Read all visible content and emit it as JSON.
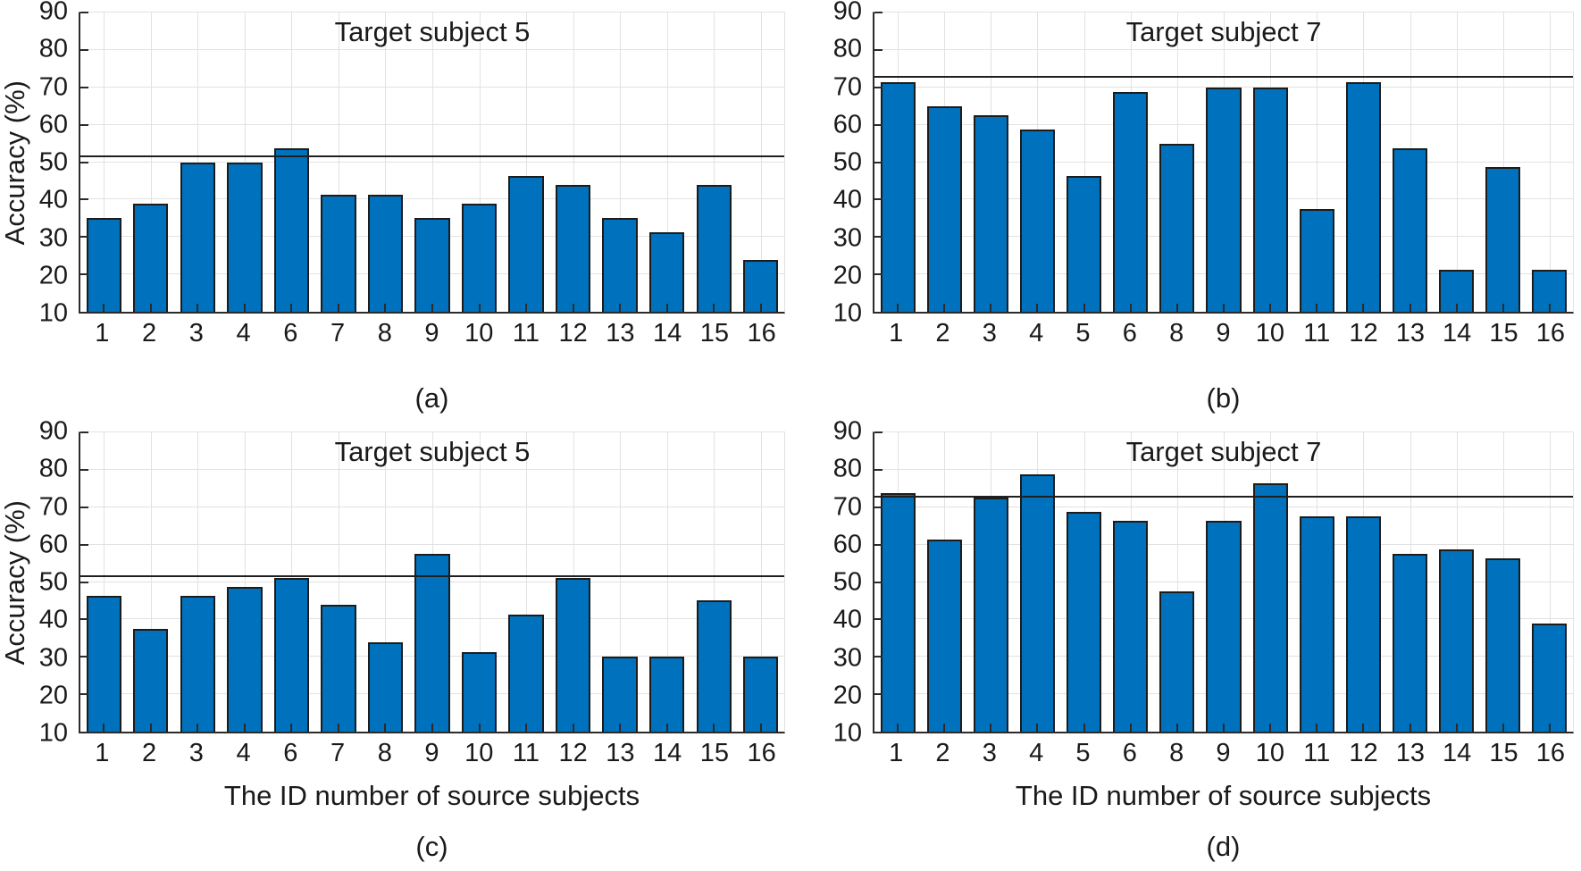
{
  "figure": {
    "background": "#ffffff",
    "ylabel": "Accuracy (%)",
    "xlabel": "The ID number of source subjects",
    "ylim": [
      10,
      90
    ],
    "yticks": [
      90,
      80,
      70,
      60,
      50,
      40,
      30,
      20,
      10
    ],
    "grid": true,
    "legend": "none"
  },
  "colors": {
    "bar_fill": "#0072BD",
    "bar_edge": "#1c1c1c",
    "grid": "#e2e2e2",
    "axis": "#2b2b2b",
    "text": "#1a1a1a",
    "ref_line": "#1f1f1f",
    "background": "#ffffff"
  },
  "chart_data": [
    {
      "type": "bar",
      "panel": "a",
      "caption": "(a)",
      "title": "Target subject 5",
      "xlabel": "",
      "ylabel": "Accuracy (%)",
      "ylim": [
        10,
        90
      ],
      "categories": [
        "1",
        "2",
        "3",
        "4",
        "6",
        "7",
        "8",
        "9",
        "10",
        "11",
        "12",
        "13",
        "14",
        "15",
        "16"
      ],
      "values": [
        35.0,
        38.8,
        50.0,
        50.0,
        53.8,
        41.3,
        41.3,
        35.0,
        38.8,
        46.3,
        43.8,
        35.0,
        31.3,
        43.8,
        23.8
      ],
      "ref_line": 51.3
    },
    {
      "type": "bar",
      "panel": "b",
      "caption": "(b)",
      "title": "Target subject 7",
      "xlabel": "",
      "ylabel": "",
      "ylim": [
        10,
        90
      ],
      "categories": [
        "1",
        "2",
        "3",
        "4",
        "5",
        "6",
        "8",
        "9",
        "10",
        "11",
        "12",
        "13",
        "14",
        "15",
        "16"
      ],
      "values": [
        71.3,
        65.0,
        62.5,
        58.8,
        46.3,
        68.8,
        55.0,
        70.0,
        70.0,
        37.5,
        71.3,
        53.8,
        21.3,
        48.8,
        21.3
      ],
      "ref_line": 72.5
    },
    {
      "type": "bar",
      "panel": "c",
      "caption": "(c)",
      "title": "Target subject 5",
      "xlabel": "The ID number of source subjects",
      "ylabel": "Accuracy (%)",
      "ylim": [
        10,
        90
      ],
      "categories": [
        "1",
        "2",
        "3",
        "4",
        "6",
        "7",
        "8",
        "9",
        "10",
        "11",
        "12",
        "13",
        "14",
        "15",
        "16"
      ],
      "values": [
        46.3,
        37.5,
        46.3,
        48.8,
        51.0,
        43.8,
        33.8,
        57.5,
        31.3,
        41.3,
        51.0,
        30.0,
        30.0,
        45.0,
        30.0
      ],
      "ref_line": 51.3
    },
    {
      "type": "bar",
      "panel": "d",
      "caption": "(d)",
      "title": "Target subject 7",
      "xlabel": "The ID number of source subjects",
      "ylabel": "",
      "ylim": [
        10,
        90
      ],
      "categories": [
        "1",
        "2",
        "3",
        "4",
        "5",
        "6",
        "8",
        "9",
        "10",
        "11",
        "12",
        "13",
        "14",
        "15",
        "16"
      ],
      "values": [
        73.8,
        61.3,
        72.5,
        78.8,
        68.8,
        66.3,
        47.5,
        66.3,
        76.3,
        67.5,
        67.5,
        57.5,
        58.8,
        56.3,
        38.8
      ],
      "ref_line": 72.5
    }
  ]
}
